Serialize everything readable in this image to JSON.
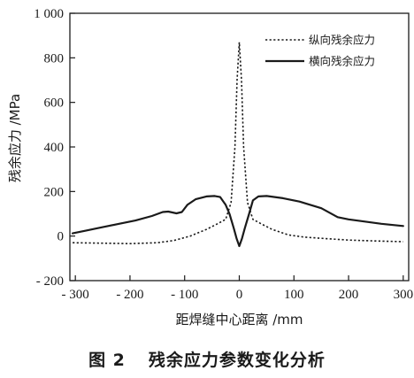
{
  "caption": {
    "figure_no": "图 2",
    "title": "残余应力参数变化分析"
  },
  "chart_data": {
    "type": "line",
    "title": "",
    "xlabel": "距焊缝中心距离 /mm",
    "ylabel": "残余应力 /MPa",
    "xlim": [
      -310,
      310
    ],
    "ylim": [
      -200,
      1000
    ],
    "x_ticks": [
      -300,
      -200,
      -100,
      0,
      100,
      200,
      300
    ],
    "x_tick_labels": [
      "- 300",
      "- 200",
      "- 100",
      "0",
      "100",
      "200",
      "300"
    ],
    "y_ticks": [
      -200,
      0,
      200,
      400,
      600,
      800,
      1000
    ],
    "y_tick_labels": [
      "- 200",
      "0",
      "200",
      "400",
      "600",
      "800",
      "1 000"
    ],
    "grid": false,
    "legend_position": "top-right",
    "series": [
      {
        "name": "纵向残余应力",
        "style": "dotted",
        "color": "#1a1a1a",
        "x": [
          -305,
          -250,
          -200,
          -150,
          -120,
          -90,
          -60,
          -40,
          -25,
          -15,
          -8,
          -4,
          0,
          4,
          8,
          15,
          25,
          40,
          60,
          90,
          120,
          150,
          200,
          250,
          300
        ],
        "y": [
          -30,
          -32,
          -34,
          -30,
          -20,
          0,
          30,
          55,
          75,
          150,
          400,
          700,
          870,
          700,
          400,
          150,
          75,
          55,
          30,
          5,
          -5,
          -10,
          -18,
          -22,
          -25
        ]
      },
      {
        "name": "横向残余应力",
        "style": "solid",
        "color": "#1a1a1a",
        "x": [
          -305,
          -280,
          -250,
          -220,
          -190,
          -160,
          -140,
          -130,
          -115,
          -105,
          -95,
          -80,
          -60,
          -45,
          -35,
          -25,
          -18,
          -10,
          -5,
          0,
          5,
          10,
          18,
          25,
          35,
          50,
          80,
          110,
          150,
          180,
          200,
          230,
          260,
          300
        ],
        "y": [
          12,
          25,
          40,
          55,
          70,
          90,
          108,
          110,
          102,
          108,
          140,
          165,
          178,
          180,
          175,
          140,
          100,
          35,
          -10,
          -45,
          -10,
          35,
          100,
          160,
          178,
          180,
          170,
          155,
          125,
          85,
          75,
          65,
          55,
          45
        ]
      }
    ]
  }
}
